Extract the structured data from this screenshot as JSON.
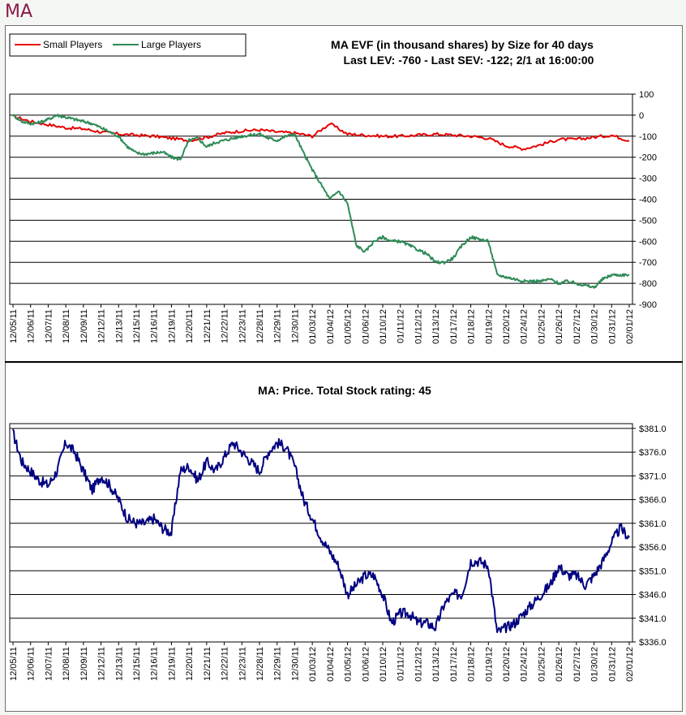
{
  "page": {
    "ticker": "MA"
  },
  "chart_data": [
    {
      "type": "line",
      "title": "MA EVF (in thousand shares) by Size for 40 days",
      "subtitle": "Last LEV: -760 - Last SEV: -122; 2/1 at 16:00:00",
      "ylim": [
        -900,
        100
      ],
      "yticks": [
        100,
        0,
        -100,
        -200,
        -300,
        -400,
        -500,
        -600,
        -700,
        -800,
        -900
      ],
      "categories": [
        "12/05/11",
        "12/06/11",
        "12/07/11",
        "12/08/11",
        "12/09/11",
        "12/12/11",
        "12/13/11",
        "12/15/11",
        "12/16/11",
        "12/19/11",
        "12/20/11",
        "12/21/11",
        "12/22/11",
        "12/23/11",
        "12/28/11",
        "12/29/11",
        "12/30/11",
        "01/03/12",
        "01/04/12",
        "01/05/12",
        "01/06/12",
        "01/10/12",
        "01/11/12",
        "01/12/12",
        "01/13/12",
        "01/17/12",
        "01/18/12",
        "01/19/12",
        "01/20/12",
        "01/24/12",
        "01/25/12",
        "01/26/12",
        "01/27/12",
        "01/30/12",
        "01/31/12",
        "02/01/12"
      ],
      "legend": {
        "position": "top-left"
      },
      "series": [
        {
          "name": "Small Players",
          "color": "#e60000",
          "x": [
            0,
            1,
            2,
            3,
            4,
            5,
            6,
            7,
            8,
            9,
            10,
            11,
            12,
            13,
            14,
            15,
            16,
            17,
            18,
            19,
            20,
            21,
            22,
            23,
            24,
            25,
            26,
            27,
            28,
            29,
            30,
            31,
            32,
            33,
            34,
            35
          ],
          "values": [
            -5,
            -30,
            -45,
            -60,
            -65,
            -80,
            -90,
            -95,
            -100,
            -110,
            -120,
            -105,
            -85,
            -75,
            -70,
            -80,
            -85,
            -100,
            -40,
            -90,
            -95,
            -100,
            -100,
            -95,
            -90,
            -95,
            -100,
            -110,
            -145,
            -160,
            -140,
            -115,
            -115,
            -105,
            -95,
            -122
          ]
        },
        {
          "name": "Large Players",
          "color": "#2e8b57",
          "x": [
            0,
            0.5,
            1,
            1.5,
            2,
            2.5,
            3,
            3.5,
            4,
            4.5,
            5,
            5.5,
            6,
            6.5,
            7,
            7.5,
            8,
            8.5,
            9,
            9.5,
            10,
            10.5,
            11,
            11.5,
            12,
            12.5,
            13,
            13.5,
            14,
            14.5,
            15,
            15.5,
            16,
            16.5,
            17,
            17.5,
            18,
            18.5,
            19,
            19.5,
            20,
            20.5,
            21,
            21.5,
            22,
            22.5,
            23,
            23.5,
            24,
            24.5,
            25,
            25.5,
            26,
            26.5,
            27,
            27.5,
            28,
            28.5,
            29,
            29.5,
            30,
            30.5,
            31,
            31.5,
            32,
            32.5,
            33,
            33.5,
            34,
            34.5,
            35
          ],
          "values": [
            0,
            -30,
            -40,
            -35,
            -20,
            0,
            -10,
            -20,
            -30,
            -40,
            -60,
            -80,
            -100,
            -150,
            -180,
            -185,
            -180,
            -175,
            -200,
            -210,
            -120,
            -110,
            -150,
            -130,
            -120,
            -110,
            -100,
            -95,
            -90,
            -110,
            -120,
            -100,
            -90,
            -180,
            -260,
            -330,
            -400,
            -360,
            -420,
            -620,
            -650,
            -600,
            -580,
            -600,
            -600,
            -620,
            -640,
            -660,
            -700,
            -700,
            -680,
            -620,
            -580,
            -590,
            -600,
            -760,
            -770,
            -780,
            -790,
            -790,
            -790,
            -780,
            -800,
            -790,
            -800,
            -810,
            -820,
            -780,
            -760,
            -760,
            -760
          ]
        }
      ]
    },
    {
      "type": "line",
      "title": "MA: Price. Total Stock rating: 45",
      "ylim": [
        336,
        382
      ],
      "yticks": [
        "$381.0",
        "$376.0",
        "$371.0",
        "$366.0",
        "$361.0",
        "$356.0",
        "$351.0",
        "$346.0",
        "$341.0",
        "$336.0"
      ],
      "categories": [
        "12/05/11",
        "12/06/11",
        "12/07/11",
        "12/08/11",
        "12/09/11",
        "12/12/11",
        "12/13/11",
        "12/15/11",
        "12/16/11",
        "12/19/11",
        "12/20/11",
        "12/21/11",
        "12/22/11",
        "12/23/11",
        "12/28/11",
        "12/29/11",
        "12/30/11",
        "01/03/12",
        "01/04/12",
        "01/05/12",
        "01/06/12",
        "01/10/12",
        "01/11/12",
        "01/12/12",
        "01/13/12",
        "01/17/12",
        "01/18/12",
        "01/19/12",
        "01/20/12",
        "01/24/12",
        "01/25/12",
        "01/26/12",
        "01/27/12",
        "01/30/12",
        "01/31/12",
        "02/01/12"
      ],
      "series": [
        {
          "name": "Price",
          "color": "#000080",
          "x": [
            0,
            0.5,
            1,
            1.5,
            2,
            2.5,
            3,
            3.5,
            4,
            4.5,
            5,
            5.5,
            6,
            6.5,
            7,
            7.5,
            8,
            8.5,
            9,
            9.5,
            10,
            10.5,
            11,
            11.5,
            12,
            12.5,
            13,
            13.5,
            14,
            14.5,
            15,
            15.5,
            16,
            16.5,
            17,
            17.5,
            18,
            18.5,
            19,
            19.5,
            20,
            20.5,
            21,
            21.5,
            22,
            22.5,
            23,
            23.5,
            24,
            24.5,
            25,
            25.5,
            26,
            26.5,
            27,
            27.5,
            28,
            28.5,
            29,
            29.5,
            30,
            30.5,
            31,
            31.5,
            32,
            32.5,
            33,
            33.5,
            34,
            34.5,
            35
          ],
          "values": [
            380,
            374,
            372,
            370,
            369,
            372,
            378,
            376,
            372,
            368,
            371,
            369,
            366,
            362,
            361,
            361,
            362,
            360,
            359,
            372,
            373,
            370,
            374,
            372,
            375,
            378,
            376,
            374,
            372,
            376,
            378,
            377,
            373,
            366,
            362,
            358,
            355,
            352,
            346,
            348,
            350,
            350,
            346,
            340,
            342,
            342,
            340,
            340,
            339,
            344,
            346,
            346,
            353,
            353,
            352,
            338,
            339,
            340,
            342,
            344,
            346,
            348,
            352,
            350,
            350,
            348,
            350,
            353,
            357,
            360,
            358
          ]
        }
      ]
    }
  ]
}
